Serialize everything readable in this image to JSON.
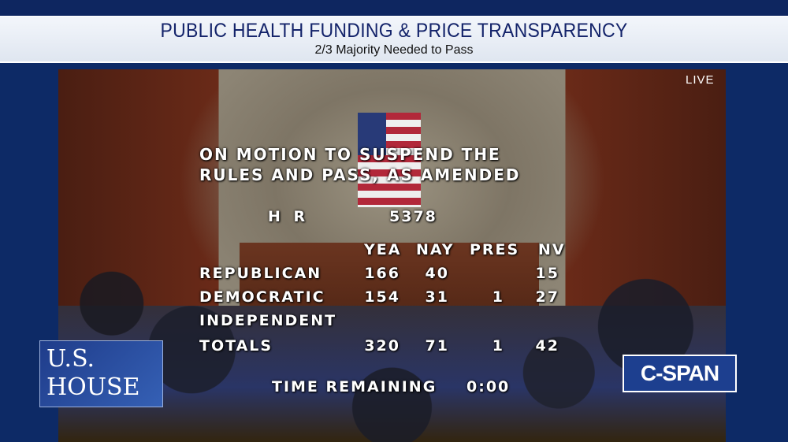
{
  "banner": {
    "title": "PUBLIC HEALTH FUNDING & PRICE TRANSPARENCY",
    "subtitle": "2/3 Majority Needed to Pass"
  },
  "live": "LIVE",
  "vote": {
    "motion_line1": "ON MOTION TO SUSPEND THE",
    "motion_line2": "RULES AND PASS, AS AMENDED",
    "bill_prefix": "H R",
    "bill_number": "5378",
    "headers": [
      "YEA",
      "NAY",
      "PRES",
      "NV"
    ],
    "rows": [
      {
        "label": "REPUBLICAN",
        "yea": "166",
        "nay": "40",
        "pres": "",
        "nv": "15"
      },
      {
        "label": "DEMOCRATIC",
        "yea": "154",
        "nay": "31",
        "pres": "1",
        "nv": "27"
      },
      {
        "label": "INDEPENDENT",
        "yea": "",
        "nay": "",
        "pres": "",
        "nv": ""
      },
      {
        "label": "TOTALS",
        "yea": "320",
        "nay": "71",
        "pres": "1",
        "nv": "42"
      }
    ],
    "time_label": "TIME REMAINING",
    "time_value": "0:00"
  },
  "logos": {
    "house_line1": "U.S.",
    "house_line2": "HOUSE",
    "cspan": "C-SPAN"
  },
  "colors": {
    "banner_text": "#13236a",
    "frame": "#0d2a66",
    "cspan": "#1d3f8f"
  }
}
